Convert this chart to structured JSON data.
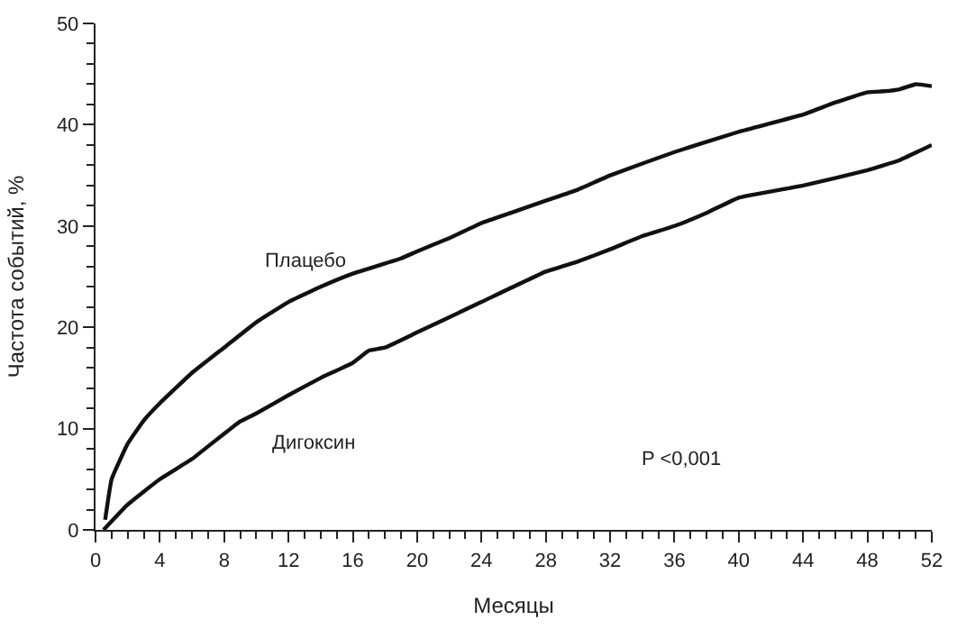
{
  "chart_data": {
    "type": "line",
    "xlabel": "Месяцы",
    "ylabel": "Частота событий, %",
    "series": [
      {
        "name": "Плацебо",
        "color": "#111111",
        "x": [
          0.6,
          1,
          2,
          3,
          4,
          6,
          8,
          10,
          12,
          14,
          16,
          18,
          19,
          20,
          22,
          24,
          26,
          28,
          30,
          32,
          36,
          40,
          44,
          46,
          48,
          49,
          50,
          51,
          52
        ],
        "values": [
          1,
          5,
          8.5,
          10.8,
          12.5,
          15.5,
          18,
          20.5,
          22.5,
          24,
          25.3,
          26.3,
          26.8,
          27.5,
          28.8,
          30.3,
          31.4,
          32.5,
          33.6,
          35,
          37.3,
          39.3,
          41,
          42.2,
          43.2,
          43.3,
          43.5,
          44,
          43.8
        ]
      },
      {
        "name": "Дигоксин",
        "color": "#111111",
        "x": [
          0.5,
          2,
          4,
          6,
          8,
          9,
          10,
          12,
          14,
          16,
          17,
          18,
          20,
          24,
          28,
          30,
          32,
          34,
          36,
          38,
          40,
          44,
          48,
          50,
          52
        ],
        "values": [
          0,
          2.5,
          5,
          7,
          9.5,
          10.7,
          11.5,
          13.3,
          15,
          16.5,
          17.7,
          18,
          19.5,
          22.5,
          25.5,
          26.5,
          27.7,
          29,
          30,
          31.3,
          32.8,
          34,
          35.5,
          36.5,
          38
        ]
      }
    ],
    "annotations": [
      "P <0,001"
    ],
    "xlim": [
      0,
      52
    ],
    "xticks": [
      0,
      4,
      8,
      12,
      16,
      20,
      24,
      28,
      32,
      36,
      40,
      44,
      48,
      52
    ],
    "ylim": [
      0,
      50
    ],
    "yticks": [
      0,
      10,
      20,
      30,
      40,
      50
    ],
    "legend": false,
    "marker": "none",
    "line_style": "solid"
  }
}
